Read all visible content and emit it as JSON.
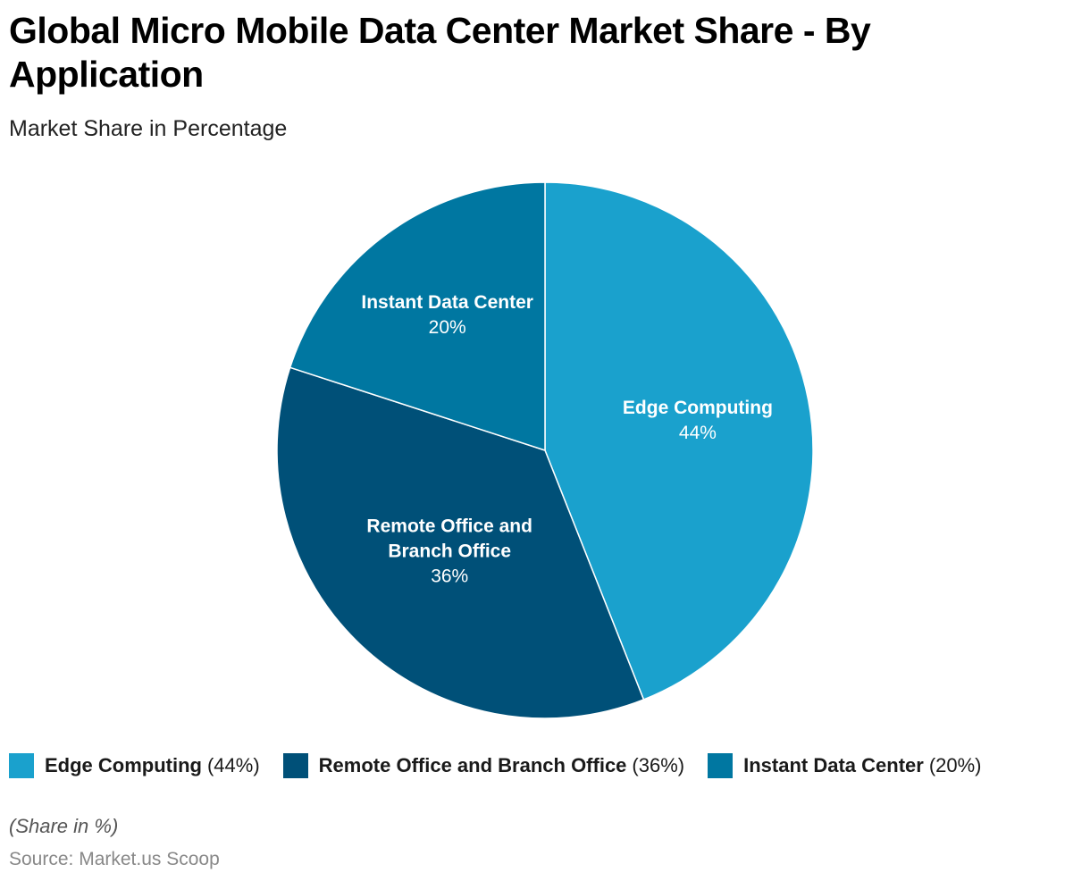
{
  "chart_data": {
    "type": "pie",
    "title": "Global Micro Mobile Data Center Market Share - By Application",
    "subtitle": "Market Share in Percentage",
    "categories": [
      "Edge Computing",
      "Remote Office and Branch Office",
      "Instant Data Center"
    ],
    "values": [
      44,
      36,
      20
    ],
    "unit": "%",
    "slices": [
      {
        "name": "Edge Computing",
        "label_lines": [
          "Edge Computing"
        ],
        "value": 44,
        "value_label": "44%",
        "color": "#1aa1cd"
      },
      {
        "name": "Remote Office and Branch Office",
        "label_lines": [
          "Remote Office and",
          "Branch Office"
        ],
        "value": 36,
        "value_label": "36%",
        "color": "#005078"
      },
      {
        "name": "Instant Data Center",
        "label_lines": [
          "Instant Data Center"
        ],
        "value": 20,
        "value_label": "20%",
        "color": "#0077a1"
      }
    ],
    "legend": [
      {
        "name": "Edge Computing",
        "pct": "(44%)",
        "color": "#1aa1cd"
      },
      {
        "name": "Remote Office and Branch Office",
        "pct": "(36%)",
        "color": "#005078"
      },
      {
        "name": "Instant Data Center",
        "pct": "(20%)",
        "color": "#0077a1"
      }
    ],
    "legend_position": "bottom-left",
    "note": "(Share in %)",
    "source": "Source: Market.us Scoop"
  }
}
